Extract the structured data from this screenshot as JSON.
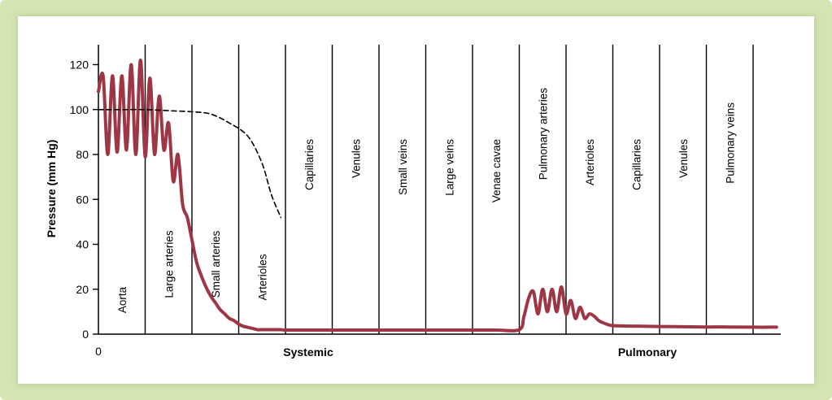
{
  "chart_data": {
    "type": "line",
    "title": "",
    "ylabel": "Pressure (mm Hg)",
    "ylim": [
      0,
      125
    ],
    "yticks": [
      "0",
      "20",
      "40",
      "60",
      "80",
      "100",
      "120"
    ],
    "xticks": [
      "0"
    ],
    "group_labels": [
      "Systemic",
      "Pulmonary"
    ],
    "segments": [
      "Aorta",
      "Large arteries",
      "Small arteries",
      "Arterioles",
      "Capillaries",
      "Venules",
      "Small veins",
      "Large veins",
      "Venae cavae",
      "Pulmonary arteries",
      "Arterioles",
      "Capillaries",
      "Venules",
      "Pulmonary veins"
    ],
    "series": [
      {
        "style": "solid",
        "color": "#9e3745",
        "x": [
          0,
          0.1,
          0.2,
          0.3,
          0.4,
          0.5,
          0.6,
          0.7,
          0.8,
          0.9,
          1.0,
          1.1,
          1.2,
          1.3,
          1.4,
          1.5,
          1.6,
          1.7,
          1.8,
          1.9,
          2.0,
          2.1,
          2.2,
          2.3,
          2.4,
          2.5,
          2.6,
          2.7,
          2.8,
          2.9,
          3.0,
          3.1,
          3.2,
          3.3,
          3.4,
          3.5,
          3.6,
          3.7,
          3.8,
          3.9,
          4.0,
          4.3,
          4.6,
          5.0,
          5.5,
          6.0,
          6.5,
          7.0,
          7.5,
          8.0,
          8.5,
          9.0,
          9.1,
          9.2,
          9.3,
          9.4,
          9.5,
          9.6,
          9.7,
          9.8,
          9.9,
          10.0,
          10.1,
          10.2,
          10.3,
          10.4,
          10.5,
          10.6,
          10.7,
          10.8,
          10.9,
          11.0,
          11.3,
          11.6,
          12.0,
          12.5,
          13.0,
          13.5,
          14.0,
          14.5
        ],
        "y": [
          108,
          115,
          80,
          115,
          81,
          115,
          82,
          120,
          80,
          122,
          79,
          114,
          80,
          106,
          82,
          94,
          68,
          80,
          58,
          52,
          42,
          32,
          26,
          21,
          17,
          14,
          11,
          9,
          7,
          6,
          4.5,
          3.5,
          3,
          2.5,
          2,
          2,
          2,
          2,
          2,
          2,
          1.8,
          1.8,
          1.8,
          1.8,
          1.8,
          1.8,
          1.8,
          1.8,
          1.8,
          1.8,
          1.8,
          2,
          8,
          16,
          19,
          9,
          20,
          10,
          20,
          10,
          21,
          9,
          15,
          7,
          12,
          7,
          9,
          8,
          6,
          5,
          4.2,
          3.8,
          3.6,
          3.5,
          3.4,
          3.3,
          3.2,
          3.2,
          3.1,
          3.1
        ]
      },
      {
        "style": "dashed",
        "color": "#000000",
        "x": [
          0,
          0.5,
          1.0,
          1.5,
          2.0,
          2.4,
          2.8,
          3.2,
          3.5,
          3.7,
          3.9
        ],
        "y": [
          100,
          100,
          100,
          99.5,
          99,
          98,
          94,
          88,
          76,
          62,
          52
        ]
      }
    ]
  }
}
